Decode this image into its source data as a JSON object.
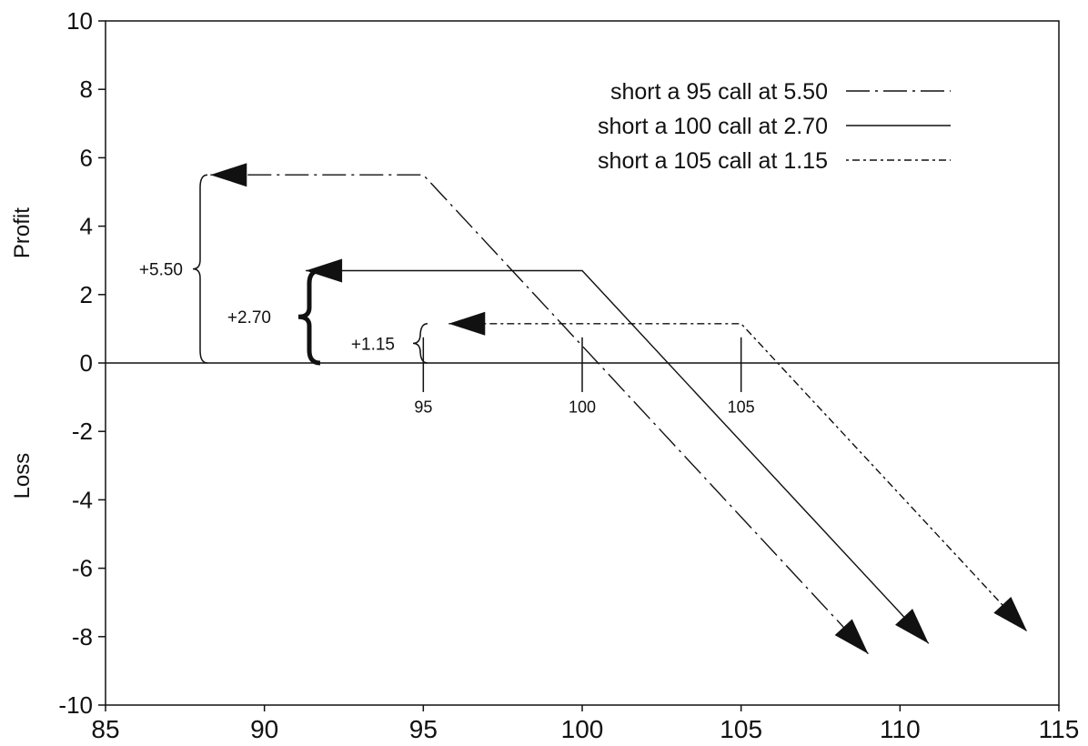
{
  "chart_data": {
    "type": "line",
    "xlim": [
      85,
      115
    ],
    "ylim": [
      -10,
      10
    ],
    "x_ticks": [
      85,
      90,
      95,
      100,
      105,
      110,
      115
    ],
    "y_ticks": [
      10,
      8,
      6,
      4,
      2,
      0,
      -2,
      -4,
      -6,
      -8,
      -10
    ],
    "ylabel_top": "Profit",
    "ylabel_bottom": "Loss",
    "grid": false,
    "legend_position": "top-right",
    "series": [
      {
        "name": "short a 95 call at 5.50",
        "style": "dash-dot",
        "premium": 5.5,
        "strike": 95,
        "x": [
          88.3,
          95,
          109
        ],
        "y": [
          5.5,
          5.5,
          -8.5
        ]
      },
      {
        "name": "short a 100 call at 2.70",
        "style": "solid",
        "premium": 2.7,
        "strike": 100,
        "x": [
          91.3,
          100,
          110.9
        ],
        "y": [
          2.7,
          2.7,
          -8.2
        ]
      },
      {
        "name": "short a 105 call at 1.15",
        "style": "dotted",
        "premium": 1.15,
        "strike": 105,
        "x": [
          95.8,
          105,
          114
        ],
        "y": [
          1.15,
          1.15,
          -7.85
        ]
      }
    ],
    "strike_labels": [
      "95",
      "100",
      "105"
    ],
    "annotations": [
      {
        "label": "+5.50",
        "value": 5.5
      },
      {
        "label": "+2.70",
        "value": 2.7
      },
      {
        "label": "+1.15",
        "value": 1.15
      }
    ]
  }
}
